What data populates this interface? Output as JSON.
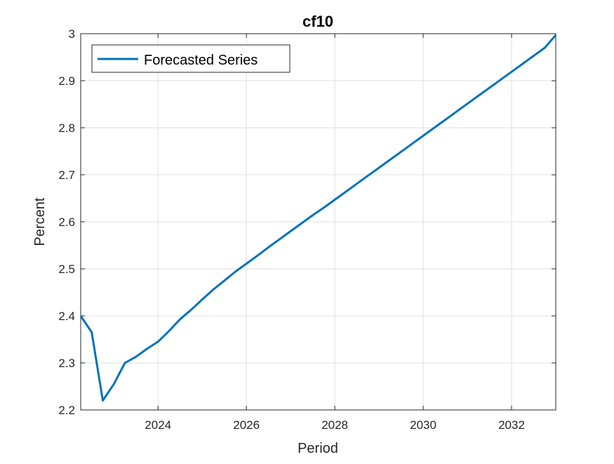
{
  "chart_data": {
    "type": "line",
    "title": "cf10",
    "xlabel": "Period",
    "ylabel": "Percent",
    "xlim": [
      2022.25,
      2033.0
    ],
    "ylim": [
      2.2,
      3.0
    ],
    "xticks": [
      2024,
      2026,
      2028,
      2030,
      2032
    ],
    "xtick_labels": [
      "2024",
      "2026",
      "2028",
      "2030",
      "2032"
    ],
    "yticks": [
      2.2,
      2.3,
      2.4,
      2.5,
      2.6,
      2.7,
      2.8,
      2.9,
      3.0
    ],
    "ytick_labels": [
      "2.2",
      "2.3",
      "2.4",
      "2.5",
      "2.6",
      "2.7",
      "2.8",
      "2.9",
      "3"
    ],
    "grid": true,
    "legend_position": "top-left",
    "series": [
      {
        "name": "Forecasted Series",
        "color": "#0072BD",
        "x": [
          2022.25,
          2022.5,
          2022.75,
          2023.0,
          2023.25,
          2023.5,
          2023.75,
          2024.0,
          2024.25,
          2024.5,
          2024.75,
          2025.0,
          2025.25,
          2025.5,
          2025.75,
          2026.0,
          2026.25,
          2026.5,
          2026.75,
          2027.0,
          2027.25,
          2027.5,
          2027.75,
          2028.0,
          2028.25,
          2028.5,
          2028.75,
          2029.0,
          2029.25,
          2029.5,
          2029.75,
          2030.0,
          2030.25,
          2030.5,
          2030.75,
          2031.0,
          2031.25,
          2031.5,
          2031.75,
          2032.0,
          2032.25,
          2032.5,
          2032.75,
          2033.0
        ],
        "values": [
          2.4,
          2.365,
          2.22,
          2.255,
          2.3,
          2.313,
          2.33,
          2.345,
          2.368,
          2.393,
          2.413,
          2.435,
          2.456,
          2.475,
          2.494,
          2.511,
          2.528,
          2.546,
          2.563,
          2.58,
          2.597,
          2.614,
          2.63,
          2.647,
          2.664,
          2.681,
          2.698,
          2.715,
          2.732,
          2.749,
          2.766,
          2.783,
          2.8,
          2.817,
          2.834,
          2.851,
          2.868,
          2.885,
          2.902,
          2.919,
          2.936,
          2.953,
          2.97,
          2.997
        ]
      }
    ]
  }
}
